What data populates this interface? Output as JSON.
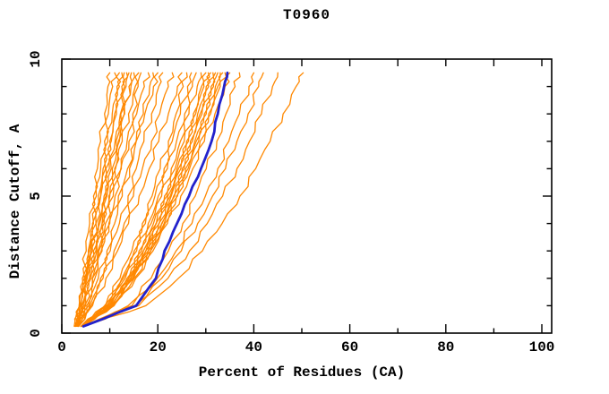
{
  "chart_data": {
    "type": "line",
    "title": "T0960",
    "xlabel": "Percent of Residues (CA)",
    "ylabel": "Distance Cutoff, A",
    "xlim": [
      0,
      102
    ],
    "ylim": [
      0,
      10
    ],
    "grid": false,
    "legend": "none",
    "x_axis": {
      "major_ticks": [
        0,
        20,
        40,
        60,
        80,
        100
      ],
      "major_labels": [
        "0",
        "20",
        "40",
        "60",
        "80",
        "100"
      ],
      "minor_ticks": [
        10,
        30,
        50,
        70,
        90
      ],
      "top_mirror_ticks": [
        10,
        20,
        30,
        40,
        50,
        60,
        70,
        80,
        90,
        100
      ]
    },
    "y_axis": {
      "major_ticks": [
        0,
        5,
        10
      ],
      "major_labels": [
        "0",
        "5",
        "10"
      ],
      "minor_ticks": [
        1,
        2,
        3,
        4,
        6,
        7,
        8,
        9
      ]
    },
    "colors": {
      "model_curves": "#ff8800",
      "highlight_curve": "#2222cc",
      "axis": "#000000"
    },
    "cutoff_levels": [
      0.25,
      1,
      2,
      3,
      4,
      5,
      6,
      7,
      8,
      9,
      9.5
    ],
    "model_curves_percent": [
      [
        3.0,
        3.6,
        4.3,
        5.1,
        5.8,
        6.6,
        7.4,
        8.1,
        8.9,
        9.6,
        10.0
      ],
      [
        3.2,
        3.8,
        4.7,
        5.5,
        6.4,
        7.2,
        8.1,
        8.9,
        9.7,
        10.6,
        11.0
      ],
      [
        2.6,
        3.7,
        4.7,
        5.7,
        6.6,
        7.6,
        8.6,
        9.6,
        10.5,
        11.5,
        12.0
      ],
      [
        3.4,
        4.1,
        5.1,
        6.1,
        7.1,
        8.1,
        9.1,
        10.0,
        11.0,
        12.0,
        12.5
      ],
      [
        2.8,
        3.8,
        4.9,
        6.0,
        7.1,
        8.1,
        9.2,
        10.3,
        11.4,
        12.5,
        13.0
      ],
      [
        3.2,
        4.1,
        5.2,
        6.4,
        7.6,
        8.8,
        9.9,
        11.1,
        12.3,
        13.4,
        14.0
      ],
      [
        2.7,
        4.0,
        5.3,
        6.6,
        7.9,
        9.2,
        10.5,
        11.8,
        13.1,
        14.4,
        15.0
      ],
      [
        3.3,
        4.3,
        5.7,
        7.1,
        8.4,
        9.8,
        11.2,
        12.6,
        13.9,
        15.3,
        16.0
      ],
      [
        2.9,
        4.2,
        5.8,
        7.5,
        9.1,
        10.7,
        12.3,
        14.0,
        15.6,
        17.2,
        18.0
      ],
      [
        3.2,
        4.6,
        6.4,
        8.2,
        10.0,
        11.8,
        13.7,
        15.5,
        17.3,
        19.1,
        20.0
      ],
      [
        3.5,
        4.8,
        6.1,
        7.3,
        8.4,
        9.4,
        10.3,
        11.3,
        12.2,
        13.1,
        13.5
      ],
      [
        3.5,
        5.0,
        6.4,
        7.7,
        8.8,
        10.0,
        11.0,
        12.0,
        13.0,
        14.0,
        14.5
      ],
      [
        3.5,
        5.2,
        6.9,
        8.4,
        9.8,
        11.1,
        12.4,
        13.6,
        14.8,
        15.9,
        16.5
      ],
      [
        3.5,
        5.6,
        7.6,
        9.4,
        11.0,
        12.6,
        14.1,
        15.5,
        17.0,
        18.3,
        19.0
      ],
      [
        3.5,
        5.8,
        8.1,
        10.1,
        12.0,
        13.8,
        15.5,
        17.1,
        18.7,
        20.2,
        21.0
      ],
      [
        3.5,
        6.1,
        8.6,
        10.9,
        13.0,
        14.9,
        16.8,
        18.7,
        20.4,
        22.2,
        23.0
      ],
      [
        3.5,
        6.4,
        9.2,
        11.6,
        13.9,
        16.1,
        18.2,
        20.2,
        22.2,
        24.1,
        25.0
      ],
      [
        4.0,
        8.9,
        12.1,
        14.6,
        16.8,
        18.8,
        20.5,
        22.2,
        23.8,
        25.3,
        26.0
      ],
      [
        4.0,
        9.1,
        12.5,
        15.1,
        17.4,
        19.4,
        21.3,
        23.0,
        24.7,
        26.2,
        27.0
      ],
      [
        4.0,
        9.3,
        12.8,
        15.6,
        18.0,
        20.1,
        22.0,
        23.9,
        25.6,
        27.2,
        28.0
      ],
      [
        4.0,
        9.5,
        13.2,
        16.1,
        18.6,
        20.8,
        22.8,
        24.7,
        26.5,
        28.2,
        29.0
      ],
      [
        4.0,
        9.7,
        13.6,
        16.6,
        19.1,
        21.4,
        23.6,
        25.5,
        27.4,
        29.1,
        30.0
      ],
      [
        4.4,
        10.2,
        14.0,
        17.0,
        19.6,
        21.9,
        24.0,
        26.0,
        27.9,
        29.6,
        30.5
      ],
      [
        4.0,
        10.0,
        13.9,
        17.0,
        19.7,
        22.1,
        24.3,
        26.4,
        28.3,
        30.1,
        31.0
      ],
      [
        4.4,
        10.4,
        14.4,
        17.5,
        20.2,
        22.6,
        24.8,
        26.8,
        28.8,
        30.6,
        31.5
      ],
      [
        4.0,
        10.2,
        14.3,
        17.5,
        20.3,
        22.8,
        25.1,
        27.2,
        29.2,
        31.1,
        32.0
      ],
      [
        4.4,
        10.6,
        14.7,
        18.0,
        20.8,
        23.3,
        25.5,
        27.7,
        29.7,
        31.6,
        32.5
      ],
      [
        4.0,
        10.4,
        14.7,
        18.0,
        20.9,
        23.5,
        25.8,
        28.0,
        30.1,
        32.0,
        33.0
      ],
      [
        4.4,
        10.8,
        15.1,
        18.5,
        21.3,
        23.9,
        26.3,
        28.5,
        30.6,
        32.5,
        33.5
      ],
      [
        4.0,
        10.6,
        15.0,
        18.5,
        21.5,
        24.1,
        26.6,
        28.8,
        31.0,
        33.0,
        34.0
      ],
      [
        4.2,
        10.9,
        15.4,
        19.0,
        22.0,
        24.8,
        27.3,
        29.7,
        31.9,
        34.0,
        35.0
      ],
      [
        4.5,
        13.8,
        18.6,
        22.2,
        25.2,
        27.8,
        30.1,
        32.3,
        34.2,
        36.1,
        37.0
      ],
      [
        4.5,
        14.6,
        19.9,
        23.8,
        27.1,
        29.9,
        32.5,
        34.8,
        37.0,
        39.0,
        40.0
      ],
      [
        4.5,
        15.2,
        20.8,
        24.9,
        28.3,
        31.4,
        34.1,
        36.5,
        38.8,
        41.0,
        42.0
      ],
      [
        4.5,
        16.0,
        22.1,
        26.6,
        30.3,
        33.5,
        36.5,
        39.1,
        41.6,
        43.9,
        45.0
      ],
      [
        4.5,
        17.5,
        24.3,
        29.3,
        33.4,
        37.1,
        40.4,
        43.4,
        46.1,
        48.8,
        50.3
      ]
    ],
    "highlight_curve_percent": [
      4.5,
      15.5,
      19.6,
      21.4,
      24.0,
      26.5,
      29.0,
      31.2,
      32.5,
      33.8,
      34.5
    ]
  }
}
